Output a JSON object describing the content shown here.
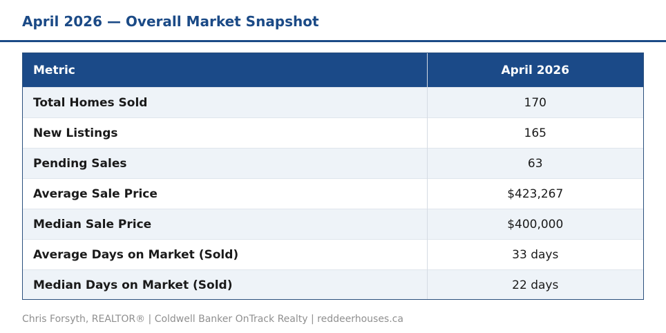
{
  "title": "April 2026 — Overall Market Snapshot",
  "colors": {
    "accent": "#1b4a86",
    "header_bg": "#1b4a88",
    "row_alt_bg": "#eef3f8",
    "footer_text": "#8f8f8f"
  },
  "table": {
    "headers": [
      "Metric",
      "April 2026"
    ],
    "rows": [
      {
        "metric": "Total Homes Sold",
        "value": "170"
      },
      {
        "metric": "New Listings",
        "value": "165"
      },
      {
        "metric": "Pending Sales",
        "value": "63"
      },
      {
        "metric": "Average Sale Price",
        "value": "$423,267"
      },
      {
        "metric": "Median Sale Price",
        "value": "$400,000"
      },
      {
        "metric": "Average Days on Market (Sold)",
        "value": "33 days"
      },
      {
        "metric": "Median Days on Market (Sold)",
        "value": "22 days"
      }
    ]
  },
  "footer": "Chris Forsyth, REALTOR® | Coldwell Banker OnTrack Realty | reddeerhouses.ca"
}
